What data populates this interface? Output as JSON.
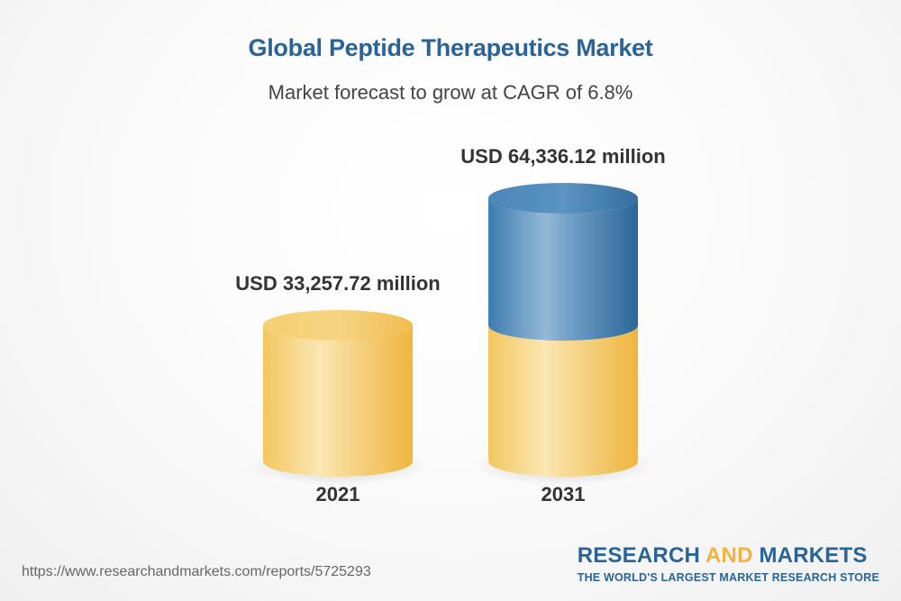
{
  "chart_data": {
    "type": "bar",
    "title": "Global Peptide Therapeutics Market",
    "subtitle": "Market forecast to grow at CAGR of 6.8%",
    "categories": [
      "2021",
      "2031"
    ],
    "values": [
      33257.72,
      64336.12
    ],
    "value_labels": [
      "USD 33,257.72 million",
      "USD 64,336.12 million"
    ],
    "unit": "USD million",
    "colors": {
      "base": "#f2c15a",
      "growth": "#3f7fb0"
    }
  },
  "footer": {
    "url": "https://www.researchandmarkets.com/reports/5725293",
    "brand_part1": "RESEARCH ",
    "brand_part2": "AND",
    "brand_part3": " MARKETS",
    "tagline": "THE WORLD'S LARGEST MARKET RESEARCH STORE"
  }
}
